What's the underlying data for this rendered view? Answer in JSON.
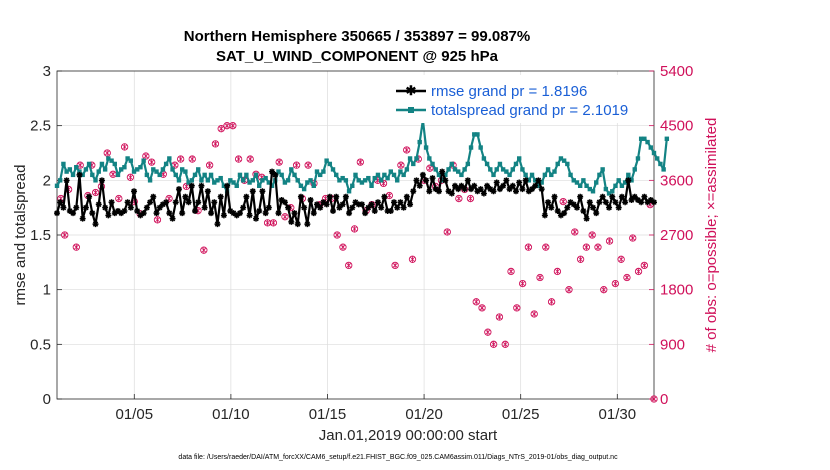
{
  "chart_data": {
    "type": "line",
    "title": "Northern Hemisphere 350665 / 353897 = 99.087%",
    "subtitle": "SAT_U_WIND_COMPONENT @ 925 hPa",
    "xlabel": "Jan.01,2019 00:00:00 start",
    "ylabel_left": "rmse and totalspread",
    "ylabel_right": "# of obs: o=possible; ×=assimilated",
    "footnote": "data file: /Users/raeder/DAI/ATM_forcXX/CAM6_setup/f.e21.FHIST_BGC.f09_025.CAM6assim.011/Diags_NTrS_2019-01/obs_diag_output.nc",
    "x_ticks": [
      "01/05",
      "01/10",
      "01/15",
      "01/20",
      "01/25",
      "01/30"
    ],
    "x_tick_days": [
      5,
      10,
      15,
      20,
      25,
      30
    ],
    "xlim": [
      1,
      31.9
    ],
    "ylim_left": [
      0,
      3
    ],
    "y_ticks_left": [
      "0",
      "0.5",
      "1",
      "1.5",
      "2",
      "2.5",
      "3"
    ],
    "ylim_right": [
      0,
      5400
    ],
    "y_ticks_right": [
      "0",
      "900",
      "1800",
      "2700",
      "3600",
      "4500",
      "5400"
    ],
    "grid": true,
    "legend_position": "top-right",
    "colors": {
      "rmse": "#000000",
      "totalspread": "#138384",
      "obs": "#d0105a"
    },
    "series": [
      {
        "name": "rmse grand pr = 1.8196",
        "axis": "left",
        "values": [
          1.7,
          1.8,
          1.75,
          2.0,
          1.72,
          1.7,
          1.75,
          2.05,
          1.65,
          1.75,
          1.85,
          1.7,
          1.6,
          1.78,
          2.0,
          1.75,
          1.68,
          1.8,
          1.7,
          1.72,
          1.7,
          1.72,
          1.8,
          1.75,
          1.9,
          1.72,
          1.68,
          1.7,
          1.75,
          1.8,
          1.85,
          1.7,
          1.75,
          1.78,
          1.8,
          1.7,
          1.65,
          1.8,
          1.92,
          1.7,
          1.85,
          1.8,
          1.95,
          1.72,
          1.8,
          1.95,
          1.75,
          1.9,
          1.7,
          1.8,
          1.6,
          1.85,
          1.68,
          1.95,
          1.72,
          1.7,
          1.68,
          1.7,
          1.75,
          1.85,
          1.68,
          1.9,
          1.65,
          1.72,
          1.9,
          1.7,
          1.75,
          2.08,
          2.05,
          1.7,
          1.82,
          1.8,
          1.75,
          1.62,
          1.7,
          1.6,
          1.85,
          1.75,
          1.6,
          1.82,
          1.7,
          1.78,
          1.75,
          1.8,
          1.78,
          1.85,
          1.72,
          1.85,
          1.75,
          1.78,
          1.85,
          1.7,
          1.75,
          1.8,
          1.78,
          1.78,
          1.7,
          1.75,
          1.78,
          1.72,
          1.8,
          1.75,
          1.85,
          1.72,
          1.72,
          1.8,
          1.75,
          1.8,
          1.75,
          1.85,
          1.78,
          1.9,
          2.0,
          1.95,
          2.05,
          2.0,
          1.9,
          2.02,
          1.92,
          1.9,
          2.08,
          2.0,
          1.9,
          1.88,
          1.95,
          1.92,
          1.95,
          1.92,
          2.0,
          1.92,
          1.95,
          1.9,
          1.92,
          1.88,
          1.95,
          1.92,
          1.9,
          1.98,
          1.92,
          1.95,
          2.0,
          1.92,
          1.95,
          1.9,
          1.98,
          1.92,
          2.0,
          1.9,
          1.92,
          1.95,
          2.0,
          1.92,
          1.68,
          1.8,
          1.75,
          1.85,
          1.72,
          1.68,
          1.7,
          1.75,
          1.8,
          1.78,
          1.75,
          1.85,
          1.72,
          1.65,
          1.8,
          1.75,
          1.7,
          1.8,
          1.85,
          1.8,
          1.75,
          1.85,
          1.8,
          1.75,
          1.85,
          1.8,
          2.0,
          1.82,
          1.85,
          1.82,
          1.8,
          1.85,
          1.8,
          1.82,
          1.8
        ]
      },
      {
        "name": "totalspread grand pr = 2.1019",
        "axis": "left",
        "values": [
          1.95,
          2.0,
          2.15,
          2.08,
          2.1,
          2.05,
          2.12,
          2.08,
          2.05,
          2.1,
          2.15,
          2.05,
          2.0,
          2.08,
          2.15,
          2.1,
          2.2,
          2.18,
          2.15,
          2.05,
          2.1,
          2.12,
          2.2,
          2.18,
          2.08,
          2.1,
          2.12,
          2.18,
          2.05,
          2.0,
          2.1,
          2.08,
          2.05,
          2.1,
          2.15,
          2.2,
          2.1,
          2.05,
          2.0,
          2.1,
          2.08,
          1.98,
          2.0,
          2.05,
          2.1,
          2.0,
          2.05,
          2.0,
          2.05,
          1.98,
          2.0,
          2.02,
          1.95,
          1.9,
          2.0,
          1.98,
          1.95,
          2.05,
          2.0,
          2.05,
          1.98,
          2.0,
          2.05,
          1.95,
          2.0,
          2.02,
          1.98,
          1.95,
          2.0,
          2.08,
          2.05,
          1.98,
          2.0,
          2.1,
          2.05,
          2.0,
          1.95,
          1.92,
          1.98,
          2.0,
          1.95,
          2.08,
          2.05,
          2.08,
          2.18,
          2.15,
          2.1,
          2.05,
          2.0,
          2.02,
          2.0,
          1.9,
          1.95,
          2.05,
          2.0,
          1.98,
          2.0,
          2.02,
          1.95,
          2.02,
          2.05,
          2.0,
          2.05,
          2.02,
          2.08,
          2.05,
          2.0,
          2.08,
          2.05,
          2.1,
          2.2,
          2.15,
          2.2,
          2.35,
          2.55,
          2.3,
          2.2,
          2.15,
          2.1,
          2.05,
          2.0,
          2.05,
          2.1,
          2.15,
          2.1,
          2.08,
          2.05,
          2.1,
          2.15,
          2.3,
          2.42,
          2.42,
          2.3,
          2.2,
          2.15,
          2.1,
          2.05,
          2.1,
          2.15,
          2.1,
          2.08,
          2.05,
          2.1,
          2.15,
          2.2,
          2.1,
          2.05,
          2.0,
          2.05,
          2.0,
          1.95,
          1.98,
          2.05,
          2.1,
          2.05,
          2.08,
          2.15,
          2.2,
          2.18,
          2.15,
          2.05,
          2.0,
          1.98,
          1.95,
          2.0,
          1.95,
          1.92,
          1.9,
          1.98,
          2.05,
          2.1,
          1.92,
          1.88,
          1.9,
          1.95,
          2.0,
          1.95,
          1.98,
          2.05,
          2.0,
          2.1,
          2.2,
          2.38,
          2.38,
          2.35,
          2.3,
          2.25,
          2.2,
          2.15,
          2.1,
          2.38
        ]
      },
      {
        "name": "obs possible / assimilated",
        "axis": "right",
        "x": [
          1.2,
          1.4,
          1.6,
          2.0,
          2.2,
          2.6,
          2.8,
          3.0,
          3.3,
          3.6,
          3.9,
          4.2,
          4.5,
          4.8,
          5.0,
          5.3,
          5.6,
          5.9,
          6.2,
          6.5,
          6.8,
          7.1,
          7.4,
          7.7,
          8.0,
          8.3,
          8.6,
          8.9,
          9.2,
          9.5,
          9.8,
          10.1,
          10.4,
          10.7,
          11.0,
          11.3,
          11.6,
          11.9,
          12.2,
          12.5,
          12.8,
          13.1,
          13.4,
          13.7,
          14.0,
          14.3,
          14.6,
          14.9,
          15.2,
          15.5,
          15.8,
          16.1,
          16.4,
          16.7,
          17.0,
          17.3,
          17.6,
          17.9,
          18.2,
          18.5,
          18.8,
          19.1,
          19.4,
          19.7,
          20.0,
          20.3,
          20.6,
          20.9,
          21.2,
          21.5,
          21.8,
          22.1,
          22.4,
          22.7,
          23.0,
          23.3,
          23.6,
          23.9,
          24.2,
          24.5,
          24.8,
          25.1,
          25.4,
          25.7,
          26.0,
          26.3,
          26.6,
          26.9,
          27.2,
          27.5,
          27.8,
          28.1,
          28.4,
          28.7,
          29.0,
          29.3,
          29.6,
          29.9,
          30.2,
          30.5,
          30.8,
          31.1,
          31.4,
          31.7,
          31.9
        ],
        "values": [
          3300,
          2700,
          3450,
          2500,
          3850,
          3350,
          3850,
          3400,
          3500,
          4050,
          3700,
          3300,
          4150,
          3650,
          3250,
          3050,
          4000,
          3900,
          2950,
          3700,
          3300,
          3850,
          3950,
          3500,
          3950,
          3100,
          2450,
          3850,
          4200,
          4450,
          4500,
          4500,
          3950,
          3600,
          3950,
          3700,
          3650,
          2900,
          2900,
          3900,
          3000,
          3150,
          3850,
          3300,
          3850,
          3550,
          3200,
          3300,
          3300,
          2700,
          2500,
          2200,
          2800,
          3900,
          3100,
          3200,
          3600,
          3550,
          3350,
          2200,
          3850,
          4100,
          2300,
          3950,
          3600,
          3800,
          3500,
          3600,
          2750,
          3850,
          3300,
          3450,
          3300,
          1600,
          1500,
          1100,
          900,
          1350,
          900,
          2100,
          1500,
          1900,
          2500,
          1400,
          2000,
          2500,
          1600,
          2100,
          3250,
          1800,
          2750,
          2300,
          2500,
          2700,
          2500,
          1800,
          2600,
          1900,
          2300,
          2000,
          2650,
          2100,
          2200,
          3200,
          0
        ]
      }
    ]
  }
}
